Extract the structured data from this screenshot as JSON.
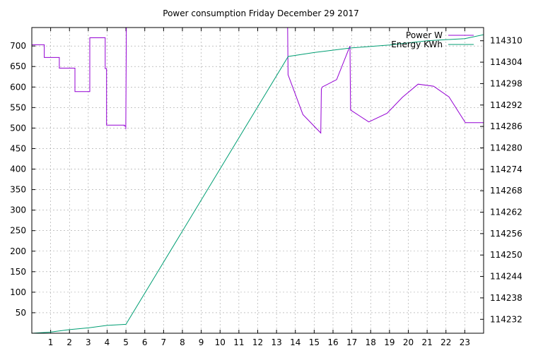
{
  "chart_data": {
    "type": "line",
    "title": "Power consumption Friday December 29 2017",
    "grid": true,
    "legend_position": "top-right",
    "x_ticks": [
      1,
      2,
      3,
      4,
      5,
      6,
      7,
      8,
      9,
      10,
      11,
      12,
      13,
      14,
      15,
      16,
      17,
      18,
      19,
      20,
      21,
      22,
      23
    ],
    "xlim": [
      0,
      24
    ],
    "y_left": {
      "ticks": [
        50,
        100,
        150,
        200,
        250,
        300,
        350,
        400,
        450,
        500,
        550,
        600,
        650,
        700
      ],
      "lim": [
        0,
        745
      ]
    },
    "y_right": {
      "ticks": [
        114232,
        114238,
        114244,
        114250,
        114256,
        114262,
        114268,
        114274,
        114280,
        114286,
        114292,
        114298,
        114304,
        114310
      ],
      "lim": [
        114228.1,
        114313.7
      ]
    },
    "series": [
      {
        "name": "Power W",
        "axis": "left",
        "color": "#9400d3",
        "step": true,
        "x": [
          0.0,
          0.66,
          0.66,
          1.46,
          1.46,
          2.29,
          2.29,
          3.08,
          3.08,
          3.9,
          3.9,
          3.97,
          3.97,
          4.92,
          4.92,
          4.99,
          4.99,
          5.02,
          5.02,
          13.59,
          13.59,
          13.61,
          13.61,
          14.4,
          14.4,
          15.35,
          15.35,
          15.38,
          15.38,
          15.42,
          15.42,
          16.19,
          16.19,
          16.9,
          16.9,
          16.93,
          16.93,
          17.9,
          17.9,
          18.87,
          18.87,
          19.69,
          19.69,
          20.52,
          20.52,
          21.34,
          21.34,
          22.16,
          22.16,
          23.03,
          23.03,
          24.0
        ],
        "y": [
          703,
          703,
          672,
          672,
          646,
          646,
          589,
          589,
          720,
          720,
          645,
          645,
          507,
          507,
          505,
          505,
          497,
          748,
          748,
          748,
          748,
          630,
          630,
          533,
          533,
          488,
          488,
          595,
          595,
          600,
          600,
          618,
          618,
          700,
          700,
          544,
          544,
          515,
          515,
          536,
          536,
          575,
          575,
          607,
          607,
          602,
          602,
          576,
          576,
          513,
          513,
          513
        ]
      },
      {
        "name": "Energy KWh",
        "axis": "right",
        "color": "#009e73",
        "step": false,
        "x": [
          0.0,
          0.95,
          2.0,
          3.0,
          4.0,
          5.0,
          13.62,
          15.0,
          17.0,
          19.0,
          21.0,
          23.0,
          24.0
        ],
        "y": [
          114228.1,
          114228.4,
          114229.1,
          114229.6,
          114230.3,
          114230.6,
          114305.6,
          114306.7,
          114308.0,
          114308.8,
          114310.0,
          114310.6,
          114311.7
        ]
      }
    ]
  }
}
